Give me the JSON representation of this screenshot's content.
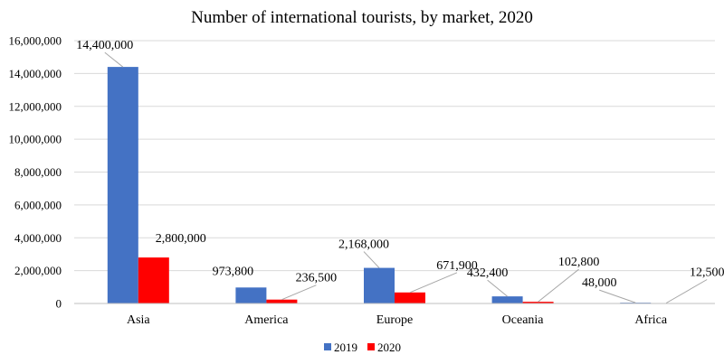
{
  "chart_data": {
    "type": "bar",
    "title": "Number of international tourists, by market, 2020",
    "xlabel": "",
    "ylabel": "",
    "categories": [
      "Asia",
      "America",
      "Europe",
      "Oceania",
      "Africa"
    ],
    "series": [
      {
        "name": "2019",
        "color": "#4472c4",
        "values": [
          14400000,
          973800,
          2168000,
          432400,
          48000
        ],
        "labels": [
          "14,400,000",
          "973,800",
          "2,168,000",
          "432,400",
          "48,000"
        ]
      },
      {
        "name": "2020",
        "color": "#ff0000",
        "values": [
          2800000,
          236500,
          671900,
          102800,
          12500
        ],
        "labels": [
          "2,800,000",
          "236,500",
          "671,900",
          "102,800",
          "12,500"
        ]
      }
    ],
    "ylim": [
      0,
      16000000
    ],
    "yticks": [
      0,
      2000000,
      4000000,
      6000000,
      8000000,
      10000000,
      12000000,
      14000000,
      16000000
    ],
    "ytick_labels": [
      "0",
      "2,000,000",
      "4,000,000",
      "6,000,000",
      "8,000,000",
      "10,000,000",
      "12,000,000",
      "14,000,000",
      "16,000,000"
    ],
    "grid": true,
    "legend": "bottom-center"
  }
}
